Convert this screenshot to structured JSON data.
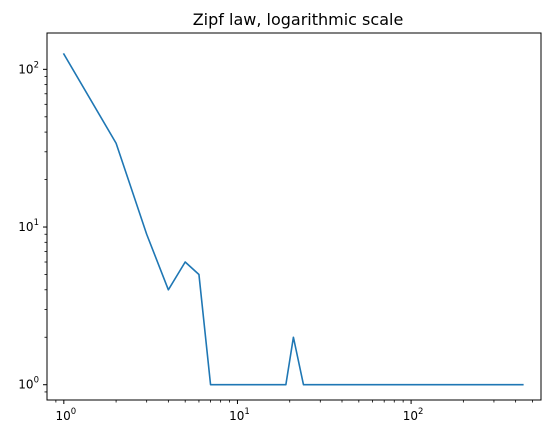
{
  "chart_data": {
    "type": "line",
    "title": "Zipf law, logarithmic scale",
    "xlabel": "",
    "ylabel": "",
    "xscale": "log",
    "yscale": "log",
    "xlim": [
      0.8,
      560
    ],
    "ylim": [
      0.8,
      170
    ],
    "grid": false,
    "line_color": "#1f77b4",
    "x_ticks": [
      {
        "value": 1,
        "base": "10",
        "exp": "0"
      },
      {
        "value": 10,
        "base": "10",
        "exp": "1"
      },
      {
        "value": 100,
        "base": "10",
        "exp": "2"
      }
    ],
    "y_ticks": [
      {
        "value": 1,
        "base": "10",
        "exp": "0"
      },
      {
        "value": 10,
        "base": "10",
        "exp": "1"
      },
      {
        "value": 100,
        "base": "10",
        "exp": "2"
      }
    ],
    "series": [
      {
        "x": [
          1,
          2,
          3,
          4,
          5,
          6,
          7,
          8,
          9,
          15,
          17,
          18,
          19,
          21,
          24,
          28,
          66,
          82,
          98,
          220,
          440
        ],
        "y": [
          125,
          34,
          9,
          4,
          6,
          5,
          1,
          1,
          1,
          1,
          1,
          1,
          1,
          2,
          1,
          1,
          1,
          1,
          1,
          1,
          1
        ]
      }
    ]
  }
}
